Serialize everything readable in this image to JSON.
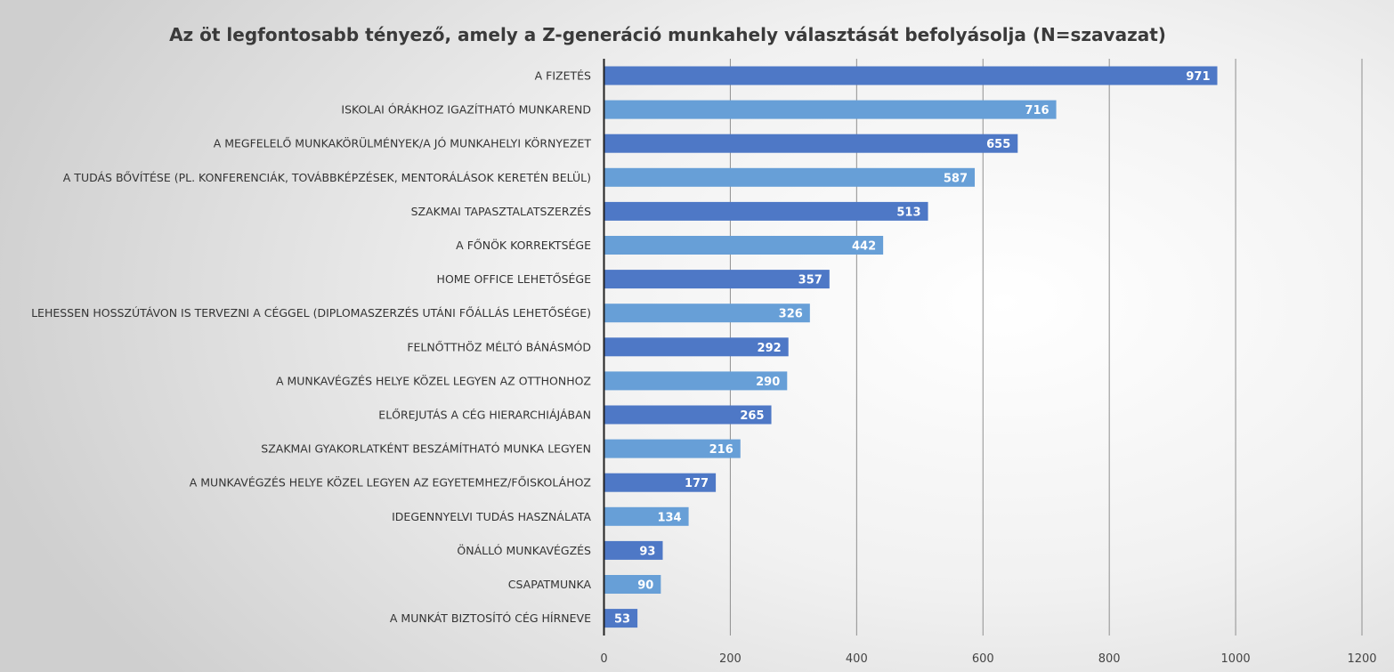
{
  "chart_data": {
    "type": "bar",
    "orientation": "horizontal",
    "title": "Az öt legfontosabb tényező, amely a Z-generáció munkahely választását befolyásolja (N=szavazat)",
    "xlabel": "",
    "ylabel": "",
    "xlim": [
      0,
      1200
    ],
    "x_ticks": [
      0,
      200,
      400,
      600,
      800,
      1000,
      1200
    ],
    "grid": "vertical",
    "legend": "none",
    "data_labels": true,
    "colors": [
      "#4e78c6",
      "#679fd7"
    ],
    "categories": [
      "A FIZETÉS",
      "ISKOLAI ÓRÁKHOZ IGAZÍTHATÓ MUNKAREND",
      "A MEGFELELŐ MUNKAKÖRÜLMÉNYEK/A JÓ MUNKAHELYI KÖRNYEZET",
      "A TUDÁS BŐVÍTÉSE (PL. KONFERENCIÁK, TOVÁBBKÉPZÉSEK, MENTORÁLÁSOK KERETÉN BELÜL)",
      "SZAKMAI TAPASZTALATSZERZÉS",
      "A FŐNÖK KORREKTSÉGE",
      "HOME OFFICE LEHETŐSÉGE",
      "LEHESSEN HOSSZÚTÁVON IS TERVEZNI A CÉGGEL (DIPLOMASZERZÉS UTÁNI FŐÁLLÁS LEHETŐSÉGE)",
      "FELNŐTTHÖZ MÉLTÓ BÁNÁSMÓD",
      "A MUNKAVÉGZÉS HELYE KÖZEL LEGYEN AZ OTTHONHOZ",
      "ELŐREJUTÁS A CÉG HIERARCHIÁJÁBAN",
      "SZAKMAI GYAKORLATKÉNT BESZÁMÍTHATÓ MUNKA LEGYEN",
      "A MUNKAVÉGZÉS HELYE KÖZEL LEGYEN AZ EGYETEMHEZ/FŐISKOLÁHOZ",
      "IDEGENNYELVI TUDÁS HASZNÁLATA",
      "ÖNÁLLÓ MUNKAVÉGZÉS",
      "CSAPATMUNKA",
      "A MUNKÁT BIZTOSÍTÓ CÉG HÍRNEVE"
    ],
    "values": [
      971,
      716,
      655,
      587,
      513,
      442,
      357,
      326,
      292,
      290,
      265,
      216,
      177,
      134,
      93,
      90,
      53
    ]
  }
}
